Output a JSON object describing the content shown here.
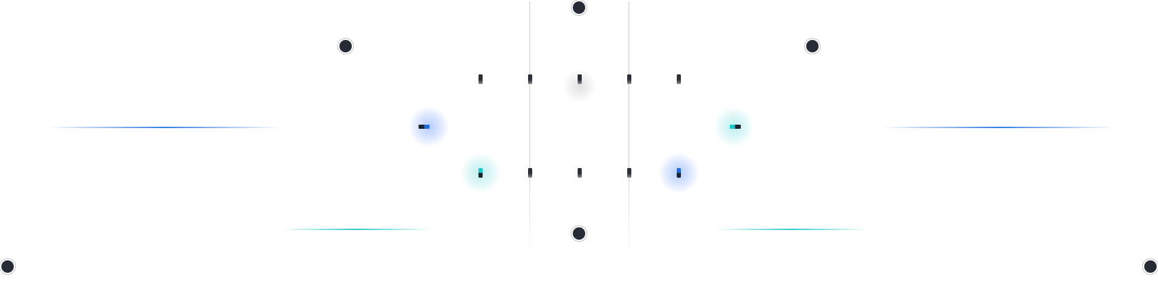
{
  "colors": {
    "node": "#262b36",
    "tick": "#2b2f36",
    "accent_blue": "#1f6fe0",
    "accent_teal": "#1cc7c9",
    "guide_line": "#c9cccf",
    "background": "#ffffff"
  }
}
